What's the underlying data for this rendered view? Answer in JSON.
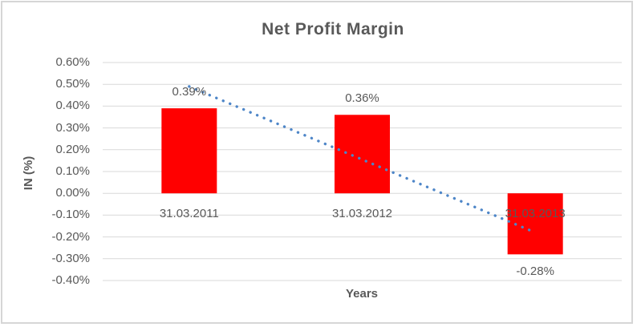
{
  "chart_data": {
    "type": "bar",
    "title": "Net Profit Margin",
    "xlabel": "Years",
    "ylabel": "IN (%)",
    "categories": [
      "31.03.2011",
      "31.03.2012",
      "31.03.2013"
    ],
    "values": [
      0.39,
      0.36,
      -0.28
    ],
    "data_labels": [
      "0.39%",
      "0.36%",
      "-0.28%"
    ],
    "unit": "%",
    "ylim": [
      -0.4,
      0.6
    ],
    "yticks": [
      0.6,
      0.5,
      0.4,
      0.3,
      0.2,
      0.1,
      0.0,
      -0.1,
      -0.2,
      -0.3,
      -0.4
    ],
    "ytick_labels": [
      "0.60%",
      "0.50%",
      "0.40%",
      "0.30%",
      "0.20%",
      "0.10%",
      "0.00%",
      "-0.10%",
      "-0.20%",
      "-0.30%",
      "-0.40%"
    ],
    "grid": true,
    "legend": "none",
    "bar_color": "#ff0000",
    "gridline_color": "#d9d9d9",
    "text_color": "#595959",
    "trendline": {
      "type": "linear",
      "style": "dotted",
      "color": "#4e86c8",
      "start_value": 0.49,
      "end_value": -0.18
    }
  }
}
